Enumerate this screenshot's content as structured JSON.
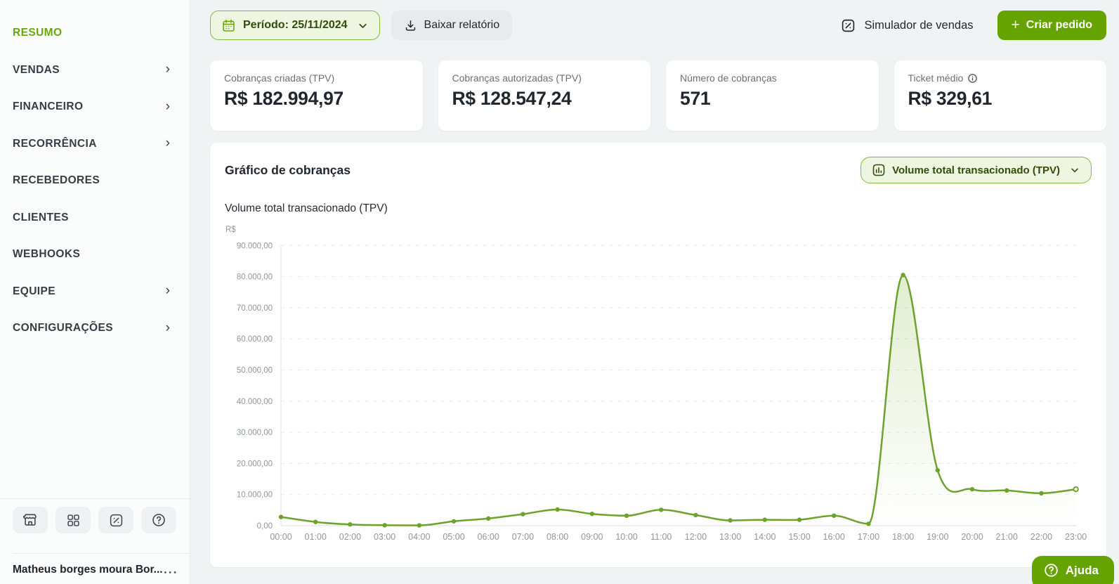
{
  "sidebar": {
    "items": [
      {
        "label": "RESUMO",
        "active": true,
        "chevron": false
      },
      {
        "label": "VENDAS",
        "active": false,
        "chevron": true
      },
      {
        "label": "FINANCEIRO",
        "active": false,
        "chevron": true
      },
      {
        "label": "RECORRÊNCIA",
        "active": false,
        "chevron": true
      },
      {
        "label": "RECEBEDORES",
        "active": false,
        "chevron": false
      },
      {
        "label": "CLIENTES",
        "active": false,
        "chevron": false
      },
      {
        "label": "WEBHOOKS",
        "active": false,
        "chevron": false
      },
      {
        "label": "EQUIPE",
        "active": false,
        "chevron": true
      },
      {
        "label": "CONFIGURAÇÕES",
        "active": false,
        "chevron": true
      }
    ],
    "footer_icons": [
      "storefront-icon",
      "apps-grid-icon",
      "sales-simulator-icon",
      "help-circle-icon"
    ],
    "user_name": "Matheus borges moura Bor...",
    "user_menu": "•••"
  },
  "topbar": {
    "period_label": "Período: 25/11/2024",
    "download_label": "Baixar relatório",
    "simulator_label": "Simulador de vendas",
    "create_order_label": "Criar pedido",
    "create_order_plus": "+"
  },
  "stats": [
    {
      "label": "Cobranças criadas (TPV)",
      "value": "R$ 182.994,97",
      "info": false
    },
    {
      "label": "Cobranças autorizadas (TPV)",
      "value": "R$ 128.547,24",
      "info": false
    },
    {
      "label": "Número de cobranças",
      "value": "571",
      "info": false
    },
    {
      "label": "Ticket médio",
      "value": "R$ 329,61",
      "info": true
    }
  ],
  "chart_card": {
    "title": "Gráfico de cobranças",
    "metric_selector": "Volume total transacionado (TPV)",
    "subtitle": "Volume total transacionado (TPV)"
  },
  "help_button": {
    "label": "Ajuda"
  },
  "colors": {
    "accent": "#65a300",
    "accent_dark_text": "#314d08",
    "accent_soft_bg": "#eef5e1",
    "accent_border": "#84b843",
    "line_green": "#6da32c",
    "text": "#1f262d",
    "muted": "#697077"
  },
  "chart_data": {
    "type": "line",
    "title": "Volume total transacionado (TPV)",
    "ylabel": "R$",
    "x": [
      "00:00",
      "01:00",
      "02:00",
      "03:00",
      "04:00",
      "05:00",
      "06:00",
      "07:00",
      "08:00",
      "09:00",
      "10:00",
      "11:00",
      "12:00",
      "13:00",
      "14:00",
      "15:00",
      "16:00",
      "17:00",
      "18:00",
      "19:00",
      "20:00",
      "21:00",
      "22:00",
      "23:00"
    ],
    "values": [
      2800,
      1200,
      400,
      150,
      100,
      1400,
      2300,
      3700,
      5200,
      3800,
      3200,
      5100,
      3400,
      1700,
      1900,
      1900,
      3200,
      600,
      80500,
      17800,
      11700,
      11300,
      10400,
      11700
    ],
    "ylim": [
      0,
      90000
    ],
    "ytick_step": 10000,
    "ytick_labels": [
      "0,00",
      "10.000,00",
      "20.000,00",
      "30.000,00",
      "40.000,00",
      "50.000,00",
      "60.000,00",
      "70.000,00",
      "80.000,00",
      "90.000,00"
    ],
    "grid": "horizontal-dashed",
    "legend": "none",
    "last_marker": "hollow",
    "area_fill": "green-gradient"
  }
}
